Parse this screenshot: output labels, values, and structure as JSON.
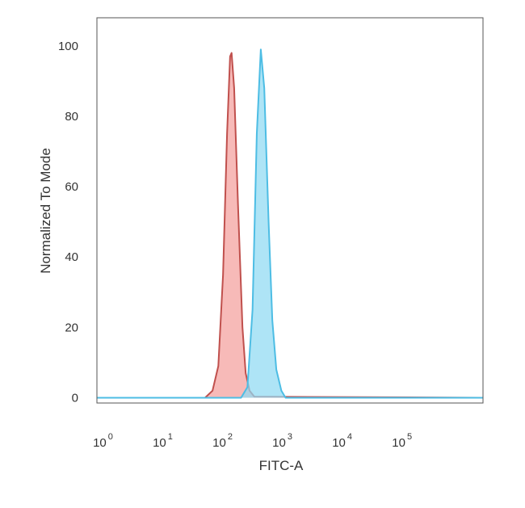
{
  "chart_data": {
    "type": "area",
    "xlabel": "FITC-A",
    "ylabel": "Normalized To Mode",
    "x_scale": "log",
    "xlim": [
      0.7,
      2000000
    ],
    "ylim": [
      -1.5,
      108
    ],
    "grid": false,
    "legend": "none",
    "x_ticks": [
      {
        "value": 1,
        "base": "10",
        "exp": "0"
      },
      {
        "value": 10,
        "base": "10",
        "exp": "1"
      },
      {
        "value": 100,
        "base": "10",
        "exp": "2"
      },
      {
        "value": 1000,
        "base": "10",
        "exp": "3"
      },
      {
        "value": 10000,
        "base": "10",
        "exp": "4"
      },
      {
        "value": 100000,
        "base": "10",
        "exp": "5"
      }
    ],
    "y_ticks": [
      {
        "value": 0,
        "label": "0"
      },
      {
        "value": 20,
        "label": "20"
      },
      {
        "value": 40,
        "label": "40"
      },
      {
        "value": 60,
        "label": "60"
      },
      {
        "value": 80,
        "label": "80"
      },
      {
        "value": 100,
        "label": "100"
      }
    ],
    "series": [
      {
        "fill": "#f4a09c",
        "stroke": "#c0504d",
        "points": [
          [
            0.7,
            0
          ],
          [
            45,
            0
          ],
          [
            60,
            2
          ],
          [
            75,
            9
          ],
          [
            90,
            35
          ],
          [
            105,
            75
          ],
          [
            118,
            97
          ],
          [
            125,
            98
          ],
          [
            138,
            88
          ],
          [
            160,
            55
          ],
          [
            190,
            20
          ],
          [
            215,
            7
          ],
          [
            250,
            2
          ],
          [
            300,
            0.3
          ],
          [
            2000000,
            0
          ]
        ]
      },
      {
        "fill": "#8fd9f2",
        "stroke": "#4dbde4",
        "points": [
          [
            0.7,
            0
          ],
          [
            180,
            0
          ],
          [
            230,
            3
          ],
          [
            280,
            25
          ],
          [
            330,
            75
          ],
          [
            385,
            99
          ],
          [
            440,
            88
          ],
          [
            520,
            50
          ],
          [
            600,
            22
          ],
          [
            700,
            8
          ],
          [
            850,
            2
          ],
          [
            1000,
            0
          ],
          [
            2000000,
            0
          ]
        ]
      }
    ]
  }
}
